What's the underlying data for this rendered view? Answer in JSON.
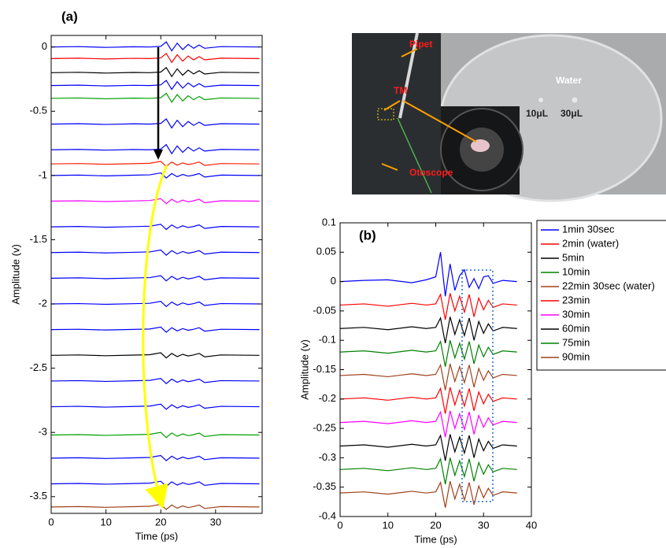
{
  "chart_data": [
    {
      "type": "line",
      "panel_label": "(a)",
      "x_label": "Time (ps)",
      "y_label": "Amplitude (v)",
      "xlim": [
        0,
        38.5
      ],
      "ylim": [
        -3.63,
        0.09
      ],
      "xticks": [
        0,
        10,
        20,
        30
      ],
      "yticks": [
        0,
        -0.5,
        -1,
        -1.5,
        -2,
        -2.5,
        -3,
        -3.5
      ],
      "x": [
        0,
        5,
        10,
        15,
        18,
        20,
        21,
        22,
        23,
        24,
        25,
        26,
        27,
        28,
        31,
        38
      ],
      "series": [
        {
          "color": "#0000ff",
          "values": [
            0,
            0.003,
            -0.003,
            0.002,
            0,
            0.005,
            0.04,
            -0.03,
            0.03,
            -0.02,
            0.02,
            -0.01,
            0.015,
            -0.01,
            0.003,
            0
          ]
        },
        {
          "color": "#0000ff",
          "values": [
            -0.3,
            -0.297,
            -0.303,
            -0.298,
            -0.3,
            -0.295,
            -0.26,
            -0.33,
            -0.27,
            -0.32,
            -0.28,
            -0.31,
            -0.285,
            -0.31,
            -0.297,
            -0.3
          ]
        },
        {
          "color": "#0000ff",
          "values": [
            -0.6,
            -0.597,
            -0.603,
            -0.598,
            -0.6,
            -0.595,
            -0.56,
            -0.63,
            -0.57,
            -0.62,
            -0.58,
            -0.61,
            -0.585,
            -0.61,
            -0.597,
            -0.6
          ]
        },
        {
          "color": "#0000ff",
          "values": [
            -0.8,
            -0.797,
            -0.803,
            -0.798,
            -0.8,
            -0.795,
            -0.76,
            -0.83,
            -0.77,
            -0.82,
            -0.78,
            -0.81,
            -0.785,
            -0.81,
            -0.797,
            -0.8
          ]
        },
        {
          "color": "#0000ff",
          "values": [
            -1,
            -0.997,
            -1.003,
            -0.998,
            -0.995,
            -0.98,
            -1.02,
            -0.985,
            -1.01,
            -0.992,
            -1.005,
            -0.997,
            -0.985,
            -1.012,
            -0.997,
            -1
          ]
        },
        {
          "color": "#0000ff",
          "values": [
            -1.4,
            -1.397,
            -1.403,
            -1.398,
            -1.395,
            -1.38,
            -1.42,
            -1.385,
            -1.41,
            -1.392,
            -1.405,
            -1.397,
            -1.385,
            -1.412,
            -1.397,
            -1.4
          ]
        },
        {
          "color": "#0000ff",
          "values": [
            -1.6,
            -1.597,
            -1.603,
            -1.598,
            -1.595,
            -1.58,
            -1.62,
            -1.585,
            -1.61,
            -1.592,
            -1.605,
            -1.597,
            -1.585,
            -1.612,
            -1.597,
            -1.6
          ]
        },
        {
          "color": "#0000ff",
          "values": [
            -1.8,
            -1.797,
            -1.803,
            -1.798,
            -1.795,
            -1.78,
            -1.82,
            -1.785,
            -1.81,
            -1.792,
            -1.805,
            -1.797,
            -1.785,
            -1.812,
            -1.797,
            -1.8
          ]
        },
        {
          "color": "#0000ff",
          "values": [
            -2,
            -1.997,
            -2.003,
            -1.998,
            -1.995,
            -1.98,
            -2.02,
            -1.985,
            -2.01,
            -1.992,
            -2.005,
            -1.997,
            -1.985,
            -2.012,
            -1.997,
            -2
          ]
        },
        {
          "color": "#0000ff",
          "values": [
            -2.2,
            -2.197,
            -2.203,
            -2.198,
            -2.195,
            -2.18,
            -2.22,
            -2.185,
            -2.21,
            -2.192,
            -2.205,
            -2.197,
            -2.185,
            -2.212,
            -2.197,
            -2.2
          ]
        },
        {
          "color": "#0000ff",
          "values": [
            -2.6,
            -2.597,
            -2.603,
            -2.598,
            -2.595,
            -2.58,
            -2.62,
            -2.585,
            -2.61,
            -2.592,
            -2.605,
            -2.597,
            -2.585,
            -2.612,
            -2.597,
            -2.6
          ]
        },
        {
          "color": "#0000ff",
          "values": [
            -2.8,
            -2.797,
            -2.803,
            -2.798,
            -2.795,
            -2.78,
            -2.82,
            -2.785,
            -2.81,
            -2.792,
            -2.805,
            -2.797,
            -2.785,
            -2.812,
            -2.797,
            -2.8
          ]
        },
        {
          "color": "#0000ff",
          "values": [
            -3.2,
            -3.197,
            -3.203,
            -3.198,
            -3.195,
            -3.18,
            -3.22,
            -3.185,
            -3.21,
            -3.192,
            -3.205,
            -3.197,
            -3.185,
            -3.212,
            -3.197,
            -3.2
          ]
        },
        {
          "color": "#0000ff",
          "values": [
            -3.4,
            -3.397,
            -3.403,
            -3.398,
            -3.395,
            -3.38,
            -3.42,
            -3.385,
            -3.41,
            -3.392,
            -3.405,
            -3.397,
            -3.385,
            -3.412,
            -3.397,
            -3.4
          ]
        },
        {
          "color": "#ff0000",
          "values": [
            -0.09,
            -0.087,
            -0.093,
            -0.088,
            -0.09,
            -0.085,
            -0.05,
            -0.12,
            -0.06,
            -0.11,
            -0.07,
            -0.1,
            -0.075,
            -0.1,
            -0.087,
            -0.09
          ]
        },
        {
          "color": "#000000",
          "values": [
            -0.2,
            -0.197,
            -0.203,
            -0.198,
            -0.2,
            -0.195,
            -0.16,
            -0.23,
            -0.17,
            -0.22,
            -0.18,
            -0.21,
            -0.185,
            -0.21,
            -0.197,
            -0.2
          ]
        },
        {
          "color": "#00a000",
          "values": [
            -0.4,
            -0.397,
            -0.403,
            -0.398,
            -0.4,
            -0.395,
            -0.36,
            -0.43,
            -0.37,
            -0.42,
            -0.38,
            -0.41,
            -0.385,
            -0.41,
            -0.397,
            -0.4
          ]
        },
        {
          "color": "#ff2000",
          "values": [
            -0.91,
            -0.907,
            -0.913,
            -0.908,
            -0.905,
            -0.89,
            -0.93,
            -0.895,
            -0.92,
            -0.902,
            -0.915,
            -0.907,
            -0.895,
            -0.922,
            -0.907,
            -0.91
          ]
        },
        {
          "color": "#ff00ff",
          "values": [
            -1.2,
            -1.197,
            -1.203,
            -1.198,
            -1.195,
            -1.18,
            -1.22,
            -1.185,
            -1.21,
            -1.192,
            -1.205,
            -1.197,
            -1.185,
            -1.212,
            -1.197,
            -1.2
          ]
        },
        {
          "color": "#000000",
          "values": [
            -2.4,
            -2.397,
            -2.403,
            -2.398,
            -2.395,
            -2.38,
            -2.42,
            -2.385,
            -2.41,
            -2.392,
            -2.405,
            -2.397,
            -2.385,
            -2.412,
            -2.397,
            -2.4
          ]
        },
        {
          "color": "#00a000",
          "values": [
            -3.02,
            -3.017,
            -3.023,
            -3.018,
            -3.015,
            -3,
            -3.04,
            -3.005,
            -3.03,
            -3.012,
            -3.025,
            -3.017,
            -3.005,
            -3.032,
            -3.017,
            -3.02
          ]
        },
        {
          "color": "#a0401a",
          "values": [
            -3.58,
            -3.577,
            -3.583,
            -3.578,
            -3.575,
            -3.56,
            -3.6,
            -3.565,
            -3.59,
            -3.572,
            -3.585,
            -3.577,
            -3.565,
            -3.592,
            -3.577,
            -3.58
          ]
        }
      ]
    },
    {
      "type": "line",
      "panel_label": "(b)",
      "x_label": "Time (ps)",
      "y_label": "Amplitude (v)",
      "xlim": [
        0,
        40
      ],
      "ylim": [
        -0.4,
        0.1
      ],
      "xticks": [
        0,
        10,
        20,
        30,
        40
      ],
      "yticks": [
        0.1,
        0.05,
        0,
        -0.05,
        -0.1,
        -0.15,
        -0.2,
        -0.25,
        -0.3,
        -0.35,
        -0.4
      ],
      "x": [
        0,
        5,
        10,
        15,
        18,
        20,
        21,
        22,
        23,
        24,
        25,
        26,
        27,
        28,
        29,
        30,
        31,
        32,
        34,
        37
      ],
      "series": [
        {
          "name": "1min 30sec",
          "color": "#0000ff",
          "values": [
            0,
            0.002,
            0.003,
            -0.002,
            0.003,
            0.008,
            0.05,
            -0.025,
            0.03,
            -0.015,
            0.01,
            0.02,
            -0.01,
            0.005,
            -0.012,
            0.008,
            0.01,
            -0.003,
            0.002,
            0
          ]
        },
        {
          "name": "2min (water)",
          "color": "#ff0000",
          "values": [
            -0.04,
            -0.038,
            -0.042,
            -0.037,
            -0.04,
            -0.038,
            -0.022,
            -0.065,
            -0.02,
            -0.05,
            -0.025,
            -0.052,
            -0.022,
            -0.06,
            -0.028,
            -0.048,
            -0.032,
            -0.044,
            -0.038,
            -0.04
          ]
        },
        {
          "name": "5min",
          "color": "#000000",
          "values": [
            -0.08,
            -0.078,
            -0.082,
            -0.077,
            -0.08,
            -0.078,
            -0.062,
            -0.105,
            -0.06,
            -0.09,
            -0.065,
            -0.092,
            -0.062,
            -0.1,
            -0.068,
            -0.088,
            -0.072,
            -0.084,
            -0.078,
            -0.08
          ]
        },
        {
          "name": "10min",
          "color": "#008000",
          "values": [
            -0.12,
            -0.118,
            -0.122,
            -0.117,
            -0.12,
            -0.118,
            -0.102,
            -0.145,
            -0.1,
            -0.13,
            -0.105,
            -0.132,
            -0.102,
            -0.14,
            -0.108,
            -0.128,
            -0.112,
            -0.124,
            -0.118,
            -0.12
          ]
        },
        {
          "name": "22min 30sec (water)",
          "color": "#a0401a",
          "values": [
            -0.16,
            -0.158,
            -0.162,
            -0.157,
            -0.16,
            -0.158,
            -0.142,
            -0.185,
            -0.14,
            -0.17,
            -0.145,
            -0.172,
            -0.142,
            -0.18,
            -0.148,
            -0.168,
            -0.152,
            -0.164,
            -0.158,
            -0.16
          ]
        },
        {
          "name": "23min",
          "color": "#ff0000",
          "values": [
            -0.2,
            -0.198,
            -0.202,
            -0.197,
            -0.2,
            -0.198,
            -0.182,
            -0.225,
            -0.18,
            -0.21,
            -0.185,
            -0.212,
            -0.182,
            -0.22,
            -0.188,
            -0.208,
            -0.192,
            -0.204,
            -0.198,
            -0.2
          ]
        },
        {
          "name": "30min",
          "color": "#ff00ff",
          "values": [
            -0.24,
            -0.238,
            -0.242,
            -0.237,
            -0.24,
            -0.238,
            -0.222,
            -0.265,
            -0.22,
            -0.25,
            -0.225,
            -0.252,
            -0.222,
            -0.26,
            -0.228,
            -0.248,
            -0.232,
            -0.244,
            -0.238,
            -0.24
          ]
        },
        {
          "name": "60min",
          "color": "#000000",
          "values": [
            -0.28,
            -0.278,
            -0.282,
            -0.277,
            -0.28,
            -0.278,
            -0.262,
            -0.305,
            -0.26,
            -0.29,
            -0.265,
            -0.292,
            -0.262,
            -0.3,
            -0.268,
            -0.288,
            -0.272,
            -0.284,
            -0.278,
            -0.28
          ]
        },
        {
          "name": "75min",
          "color": "#008000",
          "values": [
            -0.32,
            -0.318,
            -0.322,
            -0.317,
            -0.32,
            -0.318,
            -0.302,
            -0.345,
            -0.3,
            -0.33,
            -0.305,
            -0.332,
            -0.302,
            -0.34,
            -0.308,
            -0.328,
            -0.312,
            -0.324,
            -0.318,
            -0.32
          ]
        },
        {
          "name": "90min",
          "color": "#a0401a",
          "values": [
            -0.36,
            -0.358,
            -0.362,
            -0.357,
            -0.36,
            -0.358,
            -0.342,
            -0.385,
            -0.34,
            -0.37,
            -0.345,
            -0.372,
            -0.342,
            -0.38,
            -0.348,
            -0.368,
            -0.352,
            -0.364,
            -0.358,
            -0.36
          ]
        }
      ]
    }
  ],
  "photo": {
    "labels": [
      "Pipet",
      "TM",
      "Water",
      "10μL",
      "30μL",
      "Otoscope"
    ]
  }
}
